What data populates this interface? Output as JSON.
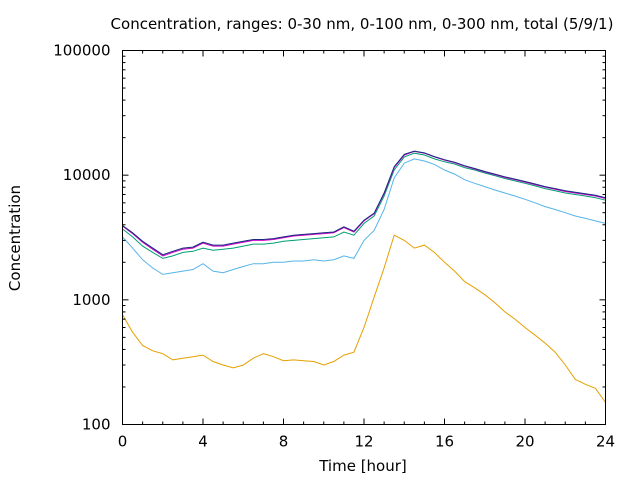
{
  "chart_data": {
    "type": "line",
    "title": "Concentration, ranges: 0-30 nm, 0-100 nm, 0-300 nm, total (5/9/1)",
    "xlabel": "Time [hour]",
    "ylabel": "Concentration",
    "xlim": [
      0,
      24
    ],
    "ylim": [
      100,
      100000
    ],
    "yscale": "log",
    "grid": false,
    "legend": "none",
    "x_ticks": [
      "0",
      "4",
      "8",
      "12",
      "16",
      "20",
      "24"
    ],
    "y_ticks": [
      "100",
      "1000",
      "10000",
      "100000"
    ],
    "x_tick_values": [
      0,
      4,
      8,
      12,
      16,
      20,
      24
    ],
    "y_tick_values": [
      100,
      1000,
      10000,
      100000
    ],
    "series": [
      {
        "color": "#e69f00",
        "x": [
          0,
          0.5,
          1,
          1.5,
          2,
          2.5,
          3,
          3.5,
          4,
          4.5,
          5,
          5.5,
          6,
          6.5,
          7,
          7.5,
          8,
          8.5,
          9,
          9.5,
          10,
          10.5,
          11,
          11.5,
          12,
          12.5,
          13,
          13.5,
          14,
          14.5,
          15,
          15.5,
          16,
          16.5,
          17,
          17.5,
          18,
          18.5,
          19,
          19.5,
          20,
          20.5,
          21,
          21.5,
          22,
          22.5,
          23,
          23.5,
          24
        ],
        "values": [
          760,
          550,
          430,
          390,
          370,
          330,
          340,
          350,
          360,
          320,
          300,
          285,
          300,
          340,
          370,
          350,
          325,
          330,
          325,
          320,
          300,
          320,
          360,
          380,
          600,
          1050,
          1800,
          3300,
          3000,
          2600,
          2750,
          2400,
          2000,
          1700,
          1400,
          1250,
          1100,
          950,
          800,
          700,
          600,
          520,
          450,
          380,
          300,
          230,
          210,
          195,
          150
        ]
      },
      {
        "color": "#56b4e9",
        "x": [
          0,
          0.5,
          1,
          1.5,
          2,
          2.5,
          3,
          3.5,
          4,
          4.5,
          5,
          5.5,
          6,
          6.5,
          7,
          7.5,
          8,
          8.5,
          9,
          9.5,
          10,
          10.5,
          11,
          11.5,
          12,
          12.5,
          13,
          13.5,
          14,
          14.5,
          15,
          15.5,
          16,
          16.5,
          17,
          17.5,
          18,
          18.5,
          19,
          19.5,
          20,
          20.5,
          21,
          21.5,
          22,
          22.5,
          23,
          23.5,
          24
        ],
        "values": [
          3200,
          2600,
          2100,
          1800,
          1600,
          1650,
          1700,
          1750,
          1950,
          1700,
          1650,
          1750,
          1850,
          1950,
          1950,
          2000,
          2000,
          2050,
          2050,
          2100,
          2050,
          2100,
          2250,
          2150,
          3000,
          3600,
          5300,
          9500,
          12500,
          13500,
          13000,
          12200,
          11000,
          10200,
          9200,
          8600,
          8100,
          7600,
          7200,
          6800,
          6400,
          6000,
          5600,
          5300,
          5000,
          4700,
          4500,
          4300,
          4100
        ]
      },
      {
        "color": "#009e73",
        "x": [
          0,
          0.5,
          1,
          1.5,
          2,
          2.5,
          3,
          3.5,
          4,
          4.5,
          5,
          5.5,
          6,
          6.5,
          7,
          7.5,
          8,
          8.5,
          9,
          9.5,
          10,
          10.5,
          11,
          11.5,
          12,
          12.5,
          13,
          13.5,
          14,
          14.5,
          15,
          15.5,
          16,
          16.5,
          17,
          17.5,
          18,
          18.5,
          19,
          19.5,
          20,
          20.5,
          21,
          21.5,
          22,
          22.5,
          23,
          23.5,
          24
        ],
        "values": [
          3700,
          3200,
          2700,
          2400,
          2150,
          2250,
          2400,
          2450,
          2600,
          2500,
          2550,
          2600,
          2700,
          2800,
          2800,
          2850,
          2950,
          3000,
          3050,
          3100,
          3150,
          3200,
          3500,
          3300,
          4100,
          4700,
          6800,
          11000,
          14000,
          15000,
          14500,
          13500,
          12800,
          12300,
          11500,
          11000,
          10400,
          9900,
          9400,
          9000,
          8600,
          8200,
          7800,
          7500,
          7200,
          7000,
          6800,
          6600,
          6300
        ]
      },
      {
        "color": "#cc00cc",
        "x": [
          0,
          0.5,
          1,
          1.5,
          2,
          2.5,
          3,
          3.5,
          4,
          4.5,
          5,
          5.5,
          6,
          6.5,
          7,
          7.5,
          8,
          8.5,
          9,
          9.5,
          10,
          10.5,
          11,
          11.5,
          12,
          12.5,
          13,
          13.5,
          14,
          14.5,
          15,
          15.5,
          16,
          16.5,
          17,
          17.5,
          18,
          18.5,
          19,
          19.5,
          20,
          20.5,
          21,
          21.5,
          22,
          22.5,
          23,
          23.5,
          24
        ],
        "values": [
          3900,
          3400,
          2900,
          2550,
          2250,
          2400,
          2550,
          2600,
          2850,
          2700,
          2700,
          2800,
          2900,
          3000,
          3000,
          3050,
          3150,
          3250,
          3300,
          3350,
          3400,
          3450,
          3800,
          3500,
          4300,
          4900,
          7100,
          11500,
          14500,
          15500,
          15000,
          14000,
          13200,
          12600,
          11800,
          11200,
          10600,
          10100,
          9600,
          9200,
          8800,
          8400,
          8000,
          7700,
          7400,
          7200,
          7000,
          6800,
          6500
        ]
      },
      {
        "color": "#1a2a80",
        "x": [
          0,
          0.5,
          1,
          1.5,
          2,
          2.5,
          3,
          3.5,
          4,
          4.5,
          5,
          5.5,
          6,
          6.5,
          7,
          7.5,
          8,
          8.5,
          9,
          9.5,
          10,
          10.5,
          11,
          11.5,
          12,
          12.5,
          13,
          13.5,
          14,
          14.5,
          15,
          15.5,
          16,
          16.5,
          17,
          17.5,
          18,
          18.5,
          19,
          19.5,
          20,
          20.5,
          21,
          21.5,
          22,
          22.5,
          23,
          23.5,
          24
        ],
        "values": [
          3950,
          3450,
          2950,
          2600,
          2300,
          2450,
          2600,
          2650,
          2900,
          2750,
          2750,
          2850,
          2950,
          3050,
          3050,
          3100,
          3200,
          3300,
          3350,
          3400,
          3450,
          3500,
          3850,
          3550,
          4350,
          4950,
          7200,
          11700,
          14700,
          15600,
          15100,
          14100,
          13300,
          12700,
          11900,
          11300,
          10700,
          10200,
          9700,
          9300,
          8900,
          8500,
          8100,
          7800,
          7500,
          7300,
          7100,
          6900,
          6600
        ]
      }
    ]
  }
}
